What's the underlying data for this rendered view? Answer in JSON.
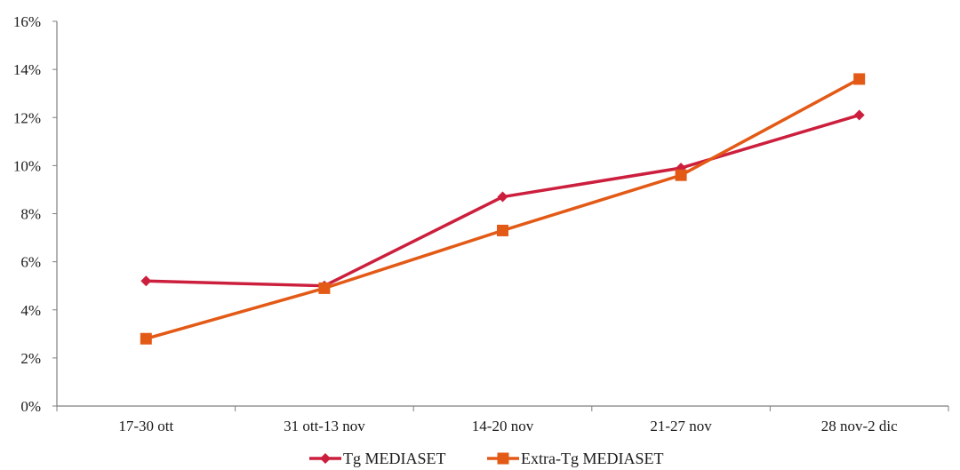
{
  "chart_data": {
    "type": "line",
    "categories": [
      "17-30 ott",
      "31 ott-13 nov",
      "14-20 nov",
      "21-27 nov",
      "28 nov-2 dic"
    ],
    "y_ticks": [
      "0%",
      "2%",
      "4%",
      "6%",
      "8%",
      "10%",
      "12%",
      "14%",
      "16%"
    ],
    "ylim": [
      0,
      16
    ],
    "y_unit": "%",
    "grid": false,
    "legend_position": "bottom",
    "series": [
      {
        "name": "Tg MEDIASET",
        "values": [
          5.2,
          5.0,
          8.7,
          9.9,
          12.1
        ],
        "color": "#cc1f3d",
        "marker": "diamond"
      },
      {
        "name": "Extra-Tg MEDIASET",
        "values": [
          2.8,
          4.9,
          7.3,
          9.6,
          13.6
        ],
        "color": "#e35a17",
        "marker": "square"
      }
    ]
  }
}
